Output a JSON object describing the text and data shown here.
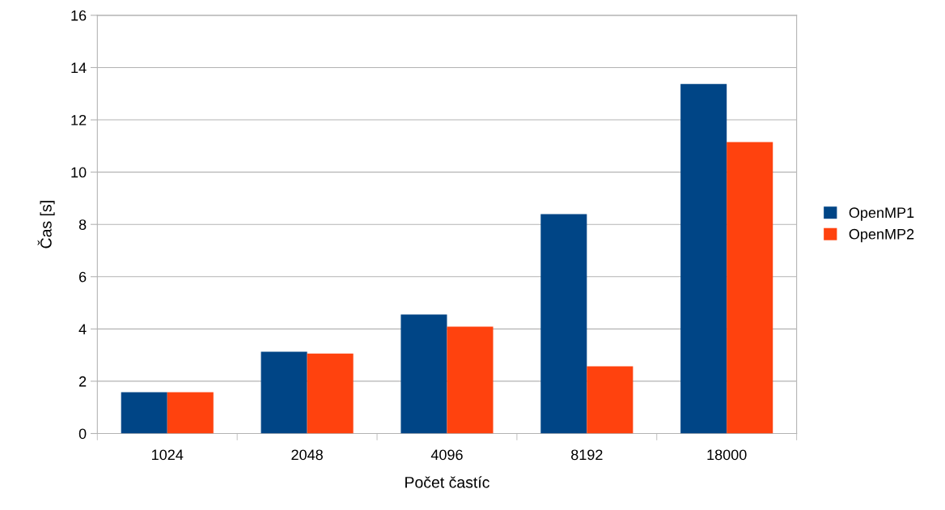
{
  "chart_data": {
    "type": "bar",
    "xlabel": "Počet častíc",
    "ylabel": "Čas [s]",
    "categories": [
      "1024",
      "2048",
      "4096",
      "8192",
      "18000"
    ],
    "series": [
      {
        "name": "OpenMP1",
        "color": "#004586",
        "values": [
          1.58,
          3.13,
          4.55,
          8.39,
          13.37
        ]
      },
      {
        "name": "OpenMP2",
        "color": "#ff420e",
        "values": [
          1.58,
          3.06,
          4.09,
          2.57,
          11.15
        ]
      }
    ],
    "ylim": [
      0,
      16
    ],
    "yticks": [
      0,
      2,
      4,
      6,
      8,
      10,
      12,
      14,
      16
    ],
    "grid": "y",
    "legend": "right"
  }
}
